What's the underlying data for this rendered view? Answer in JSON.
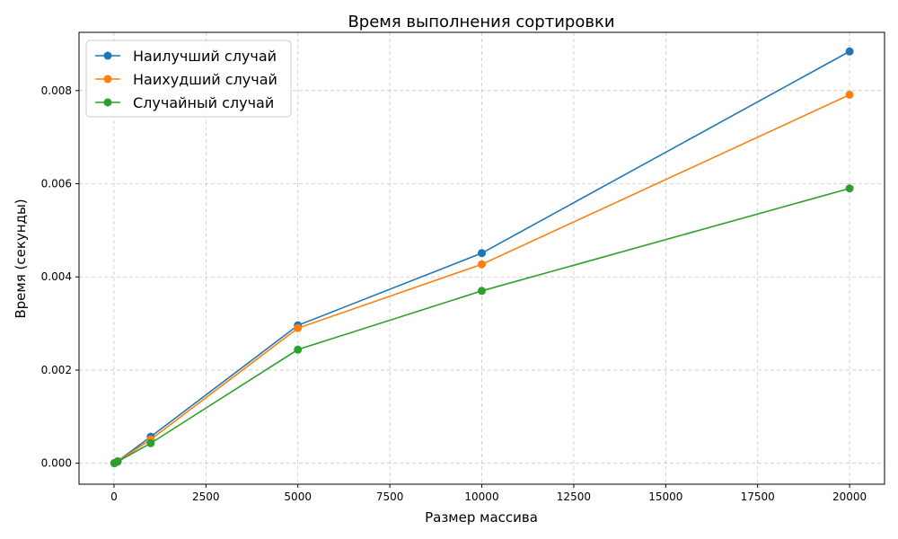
{
  "chart_data": {
    "type": "line",
    "title": "Время выполнения сортировки",
    "xlabel": "Размер массива",
    "ylabel": "Время (секунды)",
    "xlim": [
      -950,
      20950
    ],
    "ylim": [
      -0.00045,
      0.00925
    ],
    "xticks": [
      0,
      2500,
      5000,
      7500,
      10000,
      12500,
      15000,
      17500,
      20000
    ],
    "yticks": [
      0.0,
      0.002,
      0.004,
      0.006,
      0.008
    ],
    "xtick_labels": [
      "0",
      "2500",
      "5000",
      "7500",
      "10000",
      "12500",
      "15000",
      "17500",
      "20000"
    ],
    "ytick_labels": [
      "0.000",
      "0.002",
      "0.004",
      "0.006",
      "0.008"
    ],
    "grid": true,
    "legend_position": "top-left",
    "x": [
      10,
      100,
      1000,
      5000,
      10000,
      20000
    ],
    "series": [
      {
        "name": "Наилучший случай",
        "color": "#1f77b4",
        "values": [
          2.5e-06,
          4.5e-05,
          0.00057,
          0.00296,
          0.00451,
          0.00884
        ]
      },
      {
        "name": "Наихудший случай",
        "color": "#ff7f0e",
        "values": [
          2.3e-06,
          4.2e-05,
          0.00051,
          0.0029,
          0.00427,
          0.00791
        ]
      },
      {
        "name": "Случайный случай",
        "color": "#2ca02c",
        "values": [
          2e-06,
          3.5e-05,
          0.00043,
          0.00244,
          0.0037,
          0.0059
        ]
      }
    ]
  }
}
